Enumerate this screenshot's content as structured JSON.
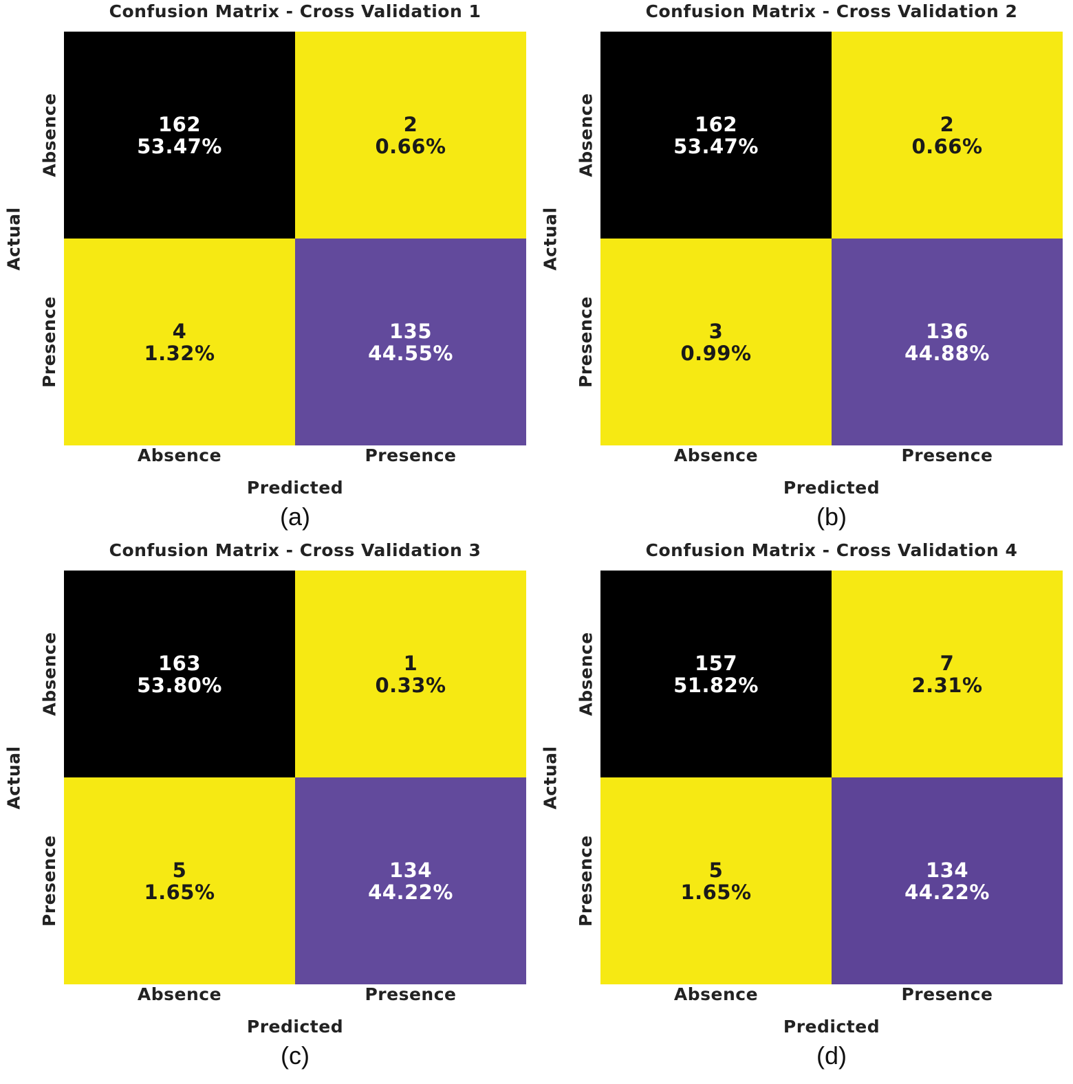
{
  "figure": {
    "colors": {
      "high": "#000000",
      "mid": "#624a9c",
      "low": "#f6e913",
      "text_on_dark": "#ffffff",
      "text_on_light": "#1a1a1a"
    }
  },
  "chart_data": [
    {
      "type": "heatmap",
      "title": "Confusion Matrix - Cross Validation 1",
      "sublabel": "(a)",
      "xlabel": "Predicted",
      "ylabel": "Actual",
      "x_categories": [
        "Absence",
        "Presence"
      ],
      "y_categories": [
        "Absence",
        "Presence"
      ],
      "values": [
        [
          162,
          2
        ],
        [
          4,
          135
        ]
      ],
      "percent_labels": [
        [
          "53.47%",
          "0.66%"
        ],
        [
          "1.32%",
          "44.55%"
        ]
      ],
      "cell_colors": [
        [
          "#000000",
          "#f6e913"
        ],
        [
          "#f6e913",
          "#624a9c"
        ]
      ]
    },
    {
      "type": "heatmap",
      "title": "Confusion Matrix - Cross Validation 2",
      "sublabel": "(b)",
      "xlabel": "Predicted",
      "ylabel": "Actual",
      "x_categories": [
        "Absence",
        "Presence"
      ],
      "y_categories": [
        "Absence",
        "Presence"
      ],
      "values": [
        [
          162,
          2
        ],
        [
          3,
          136
        ]
      ],
      "percent_labels": [
        [
          "53.47%",
          "0.66%"
        ],
        [
          "0.99%",
          "44.88%"
        ]
      ],
      "cell_colors": [
        [
          "#000000",
          "#f6e913"
        ],
        [
          "#f6e913",
          "#624a9c"
        ]
      ]
    },
    {
      "type": "heatmap",
      "title": "Confusion Matrix - Cross Validation 3",
      "sublabel": "(c)",
      "xlabel": "Predicted",
      "ylabel": "Actual",
      "x_categories": [
        "Absence",
        "Presence"
      ],
      "y_categories": [
        "Absence",
        "Presence"
      ],
      "values": [
        [
          163,
          1
        ],
        [
          5,
          134
        ]
      ],
      "percent_labels": [
        [
          "53.80%",
          "0.33%"
        ],
        [
          "1.65%",
          "44.22%"
        ]
      ],
      "cell_colors": [
        [
          "#000000",
          "#f6e913"
        ],
        [
          "#f6e913",
          "#624a9c"
        ]
      ]
    },
    {
      "type": "heatmap",
      "title": "Confusion Matrix - Cross Validation 4",
      "sublabel": "(d)",
      "xlabel": "Predicted",
      "ylabel": "Actual",
      "x_categories": [
        "Absence",
        "Presence"
      ],
      "y_categories": [
        "Absence",
        "Presence"
      ],
      "values": [
        [
          157,
          7
        ],
        [
          5,
          134
        ]
      ],
      "percent_labels": [
        [
          "51.82%",
          "2.31%"
        ],
        [
          "1.65%",
          "44.22%"
        ]
      ],
      "cell_colors": [
        [
          "#000000",
          "#f6e913"
        ],
        [
          "#f6e913",
          "#5d4497"
        ]
      ]
    }
  ]
}
